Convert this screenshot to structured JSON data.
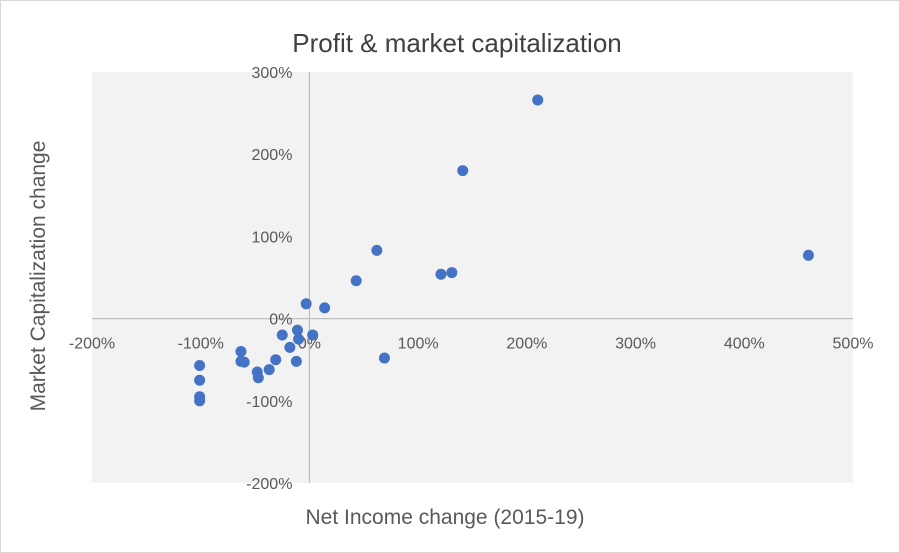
{
  "chart_data": {
    "type": "scatter",
    "title": "Profit & market capitalization",
    "xlabel": "Net Income change (2015-19)",
    "ylabel": "Market Capitalization change",
    "xlim": [
      -200,
      500
    ],
    "ylim": [
      -200,
      300
    ],
    "x_ticks": [
      -200,
      -100,
      0,
      100,
      200,
      300,
      400,
      500
    ],
    "y_ticks": [
      -200,
      -100,
      0,
      100,
      200,
      300
    ],
    "x_tick_labels": [
      "-200%",
      "-100%",
      "0%",
      "100%",
      "200%",
      "300%",
      "400%",
      "500%"
    ],
    "y_tick_labels": [
      "-200%",
      "-100%",
      "0%",
      "100%",
      "200%",
      "300%"
    ],
    "grid": false,
    "plot_background": "#f2f2f2",
    "marker_color": "#4472c4",
    "series": [
      {
        "points": [
          {
            "x": -101,
            "y": -57
          },
          {
            "x": -101,
            "y": -75
          },
          {
            "x": -101,
            "y": -95
          },
          {
            "x": -101,
            "y": -100
          },
          {
            "x": -63,
            "y": -40
          },
          {
            "x": -63,
            "y": -52
          },
          {
            "x": -60,
            "y": -53
          },
          {
            "x": -48,
            "y": -65
          },
          {
            "x": -47,
            "y": -72
          },
          {
            "x": -37,
            "y": -62
          },
          {
            "x": -31,
            "y": -50
          },
          {
            "x": -25,
            "y": -20
          },
          {
            "x": -18,
            "y": -35
          },
          {
            "x": -12,
            "y": -52
          },
          {
            "x": -11,
            "y": -14
          },
          {
            "x": -10,
            "y": -25
          },
          {
            "x": -3,
            "y": 18
          },
          {
            "x": 3,
            "y": -20
          },
          {
            "x": 14,
            "y": 13
          },
          {
            "x": 43,
            "y": 46
          },
          {
            "x": 62,
            "y": 83
          },
          {
            "x": 69,
            "y": -48
          },
          {
            "x": 121,
            "y": 54
          },
          {
            "x": 131,
            "y": 56
          },
          {
            "x": 141,
            "y": 180
          },
          {
            "x": 210,
            "y": 266
          },
          {
            "x": 459,
            "y": 77
          }
        ]
      }
    ]
  }
}
